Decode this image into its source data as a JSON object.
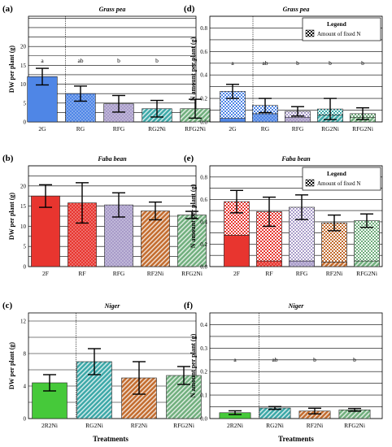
{
  "colors": {
    "grass_pea": "#4f86e6",
    "faba_bean": "#e8352f",
    "niger": "#46c93a",
    "rfg": "#a89bc9",
    "rfni": "#c26a2c",
    "rgni": "#3aa7a7",
    "rfgni": "#6fae7c"
  },
  "x_axis_label": "Treatments",
  "legend": {
    "title": "Legend",
    "item": "Amount of fixed N"
  },
  "chart_data": [
    {
      "type": "bar",
      "panel": "(a)",
      "title": "Grass pea",
      "ylabel": "DW per plant (g)",
      "ylim": [
        0,
        28
      ],
      "yticks": [
        0,
        5,
        10,
        15,
        20
      ],
      "gridlines": [
        0,
        2.5,
        5,
        7.5,
        10,
        12.5,
        15,
        17.5,
        20,
        22.5,
        25,
        27.5
      ],
      "separator_after": 0,
      "categories": [
        "2G",
        "RG",
        "RFG",
        "RG2Ni",
        "RFG2Ni"
      ],
      "values": [
        12.0,
        7.5,
        4.8,
        3.5,
        3.5
      ],
      "errors": [
        2.2,
        2.0,
        2.2,
        2.2,
        2.5
      ],
      "letters": [
        "a",
        "ab",
        "b",
        "b",
        "b"
      ],
      "letters_y": 16.2,
      "bar_colors": [
        "grass_pea",
        "grass_pea",
        "rfg",
        "rgni",
        "rfgni"
      ],
      "bar_patterns": [
        "none",
        "dots",
        "dots",
        "hatch",
        "hatch"
      ]
    },
    {
      "type": "bar",
      "panel": "(b)",
      "title": "Faba bean",
      "ylabel": "DW per plant (g)",
      "ylim": [
        0,
        25
      ],
      "yticks": [
        0,
        5,
        10,
        15,
        20
      ],
      "gridlines": [
        0,
        2.5,
        5,
        7.5,
        10,
        12.5,
        15,
        17.5,
        20,
        22.5,
        25
      ],
      "separator_after": -1,
      "categories": [
        "2F",
        "RF",
        "RFG",
        "RF2Ni",
        "RFG2Ni"
      ],
      "values": [
        17.5,
        15.8,
        15.3,
        13.8,
        12.8
      ],
      "errors": [
        2.8,
        5.0,
        3.0,
        2.2,
        0.9
      ],
      "letters": [],
      "bar_colors": [
        "faba_bean",
        "faba_bean",
        "rfg",
        "rfni",
        "rfgni"
      ],
      "bar_patterns": [
        "none",
        "dots",
        "dots",
        "hatch",
        "hatch"
      ]
    },
    {
      "type": "bar",
      "panel": "(c)",
      "title": "Niger",
      "ylabel": "DW per plant (g)",
      "ylim": [
        0,
        13
      ],
      "yticks": [
        0,
        4,
        8,
        12
      ],
      "gridlines": [
        0,
        2,
        4,
        6,
        8,
        10,
        12
      ],
      "separator_after": 0,
      "categories": [
        "2R2Ni",
        "RG2Ni",
        "RF2Ni",
        "RFG2Ni"
      ],
      "values": [
        4.4,
        7.0,
        5.0,
        5.3
      ],
      "errors": [
        1.0,
        1.6,
        2.0,
        1.1
      ],
      "letters": [],
      "bar_colors": [
        "niger",
        "rgni",
        "rfni",
        "rfgni"
      ],
      "bar_patterns": [
        "none",
        "hatch",
        "hatch",
        "hatch"
      ]
    },
    {
      "type": "bar",
      "panel": "(d)",
      "title": "Grass pea",
      "ylabel": "N amount per plant (g)",
      "ylim": [
        0,
        0.9
      ],
      "yticks": [
        0.0,
        0.2,
        0.4,
        0.6,
        0.8
      ],
      "gridlines": [
        0,
        0.1,
        0.2,
        0.3,
        0.4,
        0.5,
        0.6,
        0.7,
        0.8,
        0.9
      ],
      "separator_after": 0,
      "categories": [
        "2G",
        "RG",
        "RFG",
        "RG2Ni",
        "RFG2Ni"
      ],
      "values": [
        0.26,
        0.14,
        0.09,
        0.11,
        0.07
      ],
      "fixed_n": [
        0.23,
        0.07,
        0.05,
        0.05,
        0.03
      ],
      "errors": [
        0.06,
        0.06,
        0.04,
        0.09,
        0.05
      ],
      "letters": [
        "a",
        "ab",
        "b",
        "b",
        "b"
      ],
      "letters_y": 0.5,
      "bar_colors": [
        "grass_pea",
        "grass_pea",
        "rfg",
        "rgni",
        "rfgni"
      ],
      "bar_patterns": [
        "none",
        "dots",
        "dots",
        "hatch",
        "hatch"
      ],
      "legend": true
    },
    {
      "type": "bar",
      "panel": "(e)",
      "title": "Faba bean",
      "ylabel": "N amount per plant (g)",
      "ylim": [
        0,
        0.9
      ],
      "yticks": [
        0.0,
        0.2,
        0.4,
        0.6,
        0.8
      ],
      "gridlines": [
        0,
        0.1,
        0.2,
        0.3,
        0.4,
        0.5,
        0.6,
        0.7,
        0.8,
        0.9
      ],
      "separator_after": -1,
      "categories": [
        "2F",
        "RF",
        "RFG",
        "RF2Ni",
        "RFG2Ni"
      ],
      "values": [
        0.58,
        0.49,
        0.53,
        0.39,
        0.41
      ],
      "fixed_n": [
        0.3,
        0.44,
        0.48,
        0.35,
        0.36
      ],
      "errors": [
        0.1,
        0.13,
        0.11,
        0.07,
        0.06
      ],
      "letters": [],
      "bar_colors": [
        "faba_bean",
        "faba_bean",
        "rfg",
        "rfni",
        "rfgni"
      ],
      "bar_patterns": [
        "none",
        "dots",
        "dots",
        "hatch",
        "hatch"
      ],
      "legend": true
    },
    {
      "type": "bar",
      "panel": "(f)",
      "title": "Niger",
      "ylabel": "N amount per plant (g)",
      "ylim": [
        0,
        0.45
      ],
      "yticks": [
        0.0,
        0.1,
        0.2,
        0.3,
        0.4
      ],
      "gridlines": [
        0,
        0.05,
        0.1,
        0.15,
        0.2,
        0.25,
        0.3,
        0.35,
        0.4
      ],
      "separator_after": 0,
      "categories": [
        "2R2Ni",
        "RG2Ni",
        "RF2Ni",
        "RFG2Ni"
      ],
      "values": [
        0.025,
        0.045,
        0.032,
        0.037
      ],
      "errors": [
        0.008,
        0.006,
        0.012,
        0.006
      ],
      "letters": [
        "a",
        "ab",
        "b",
        "b"
      ],
      "letters_y": 0.25,
      "bar_colors": [
        "niger",
        "rgni",
        "rfni",
        "rfgni"
      ],
      "bar_patterns": [
        "none",
        "hatch",
        "hatch",
        "hatch"
      ]
    }
  ]
}
